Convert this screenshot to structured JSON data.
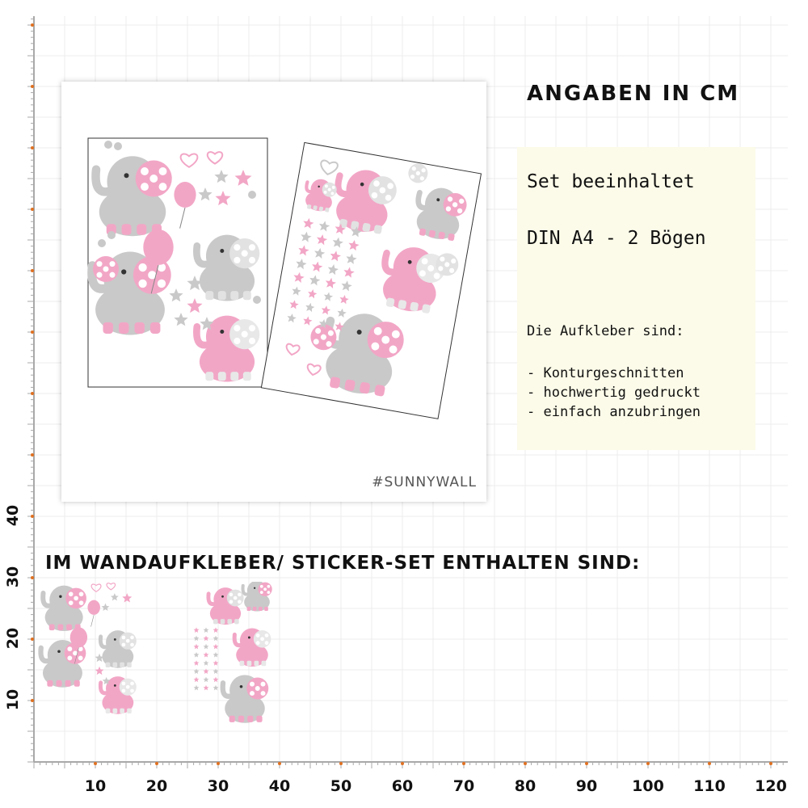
{
  "ruler": {
    "x_ticks": [
      "10",
      "20",
      "30",
      "40",
      "50",
      "60",
      "70",
      "80",
      "90",
      "100",
      "110",
      "120"
    ],
    "y_ticks": [
      "40",
      "30",
      "20",
      "10"
    ],
    "unit_note": "ANGABEN IN CM"
  },
  "product": {
    "brand": "#SUNNYWALL"
  },
  "info": {
    "set_title": "Set beeinhaltet",
    "set_size": "DIN A4 - 2 Bögen",
    "features_title": "Die Aufkleber sind:",
    "features": [
      "- Konturgeschnitten",
      "- hochwertig gedruckt",
      "- einfach anzubringen"
    ]
  },
  "headline": "IM WANDAUFKLEBER/ STICKER-SET ENTHALTEN SIND:",
  "colors": {
    "pink": "#f2a6c6",
    "gray": "#c9c9c9",
    "grid": "#ececec",
    "ruler": "#a9a9a9",
    "tick_accent": "#e07020"
  }
}
